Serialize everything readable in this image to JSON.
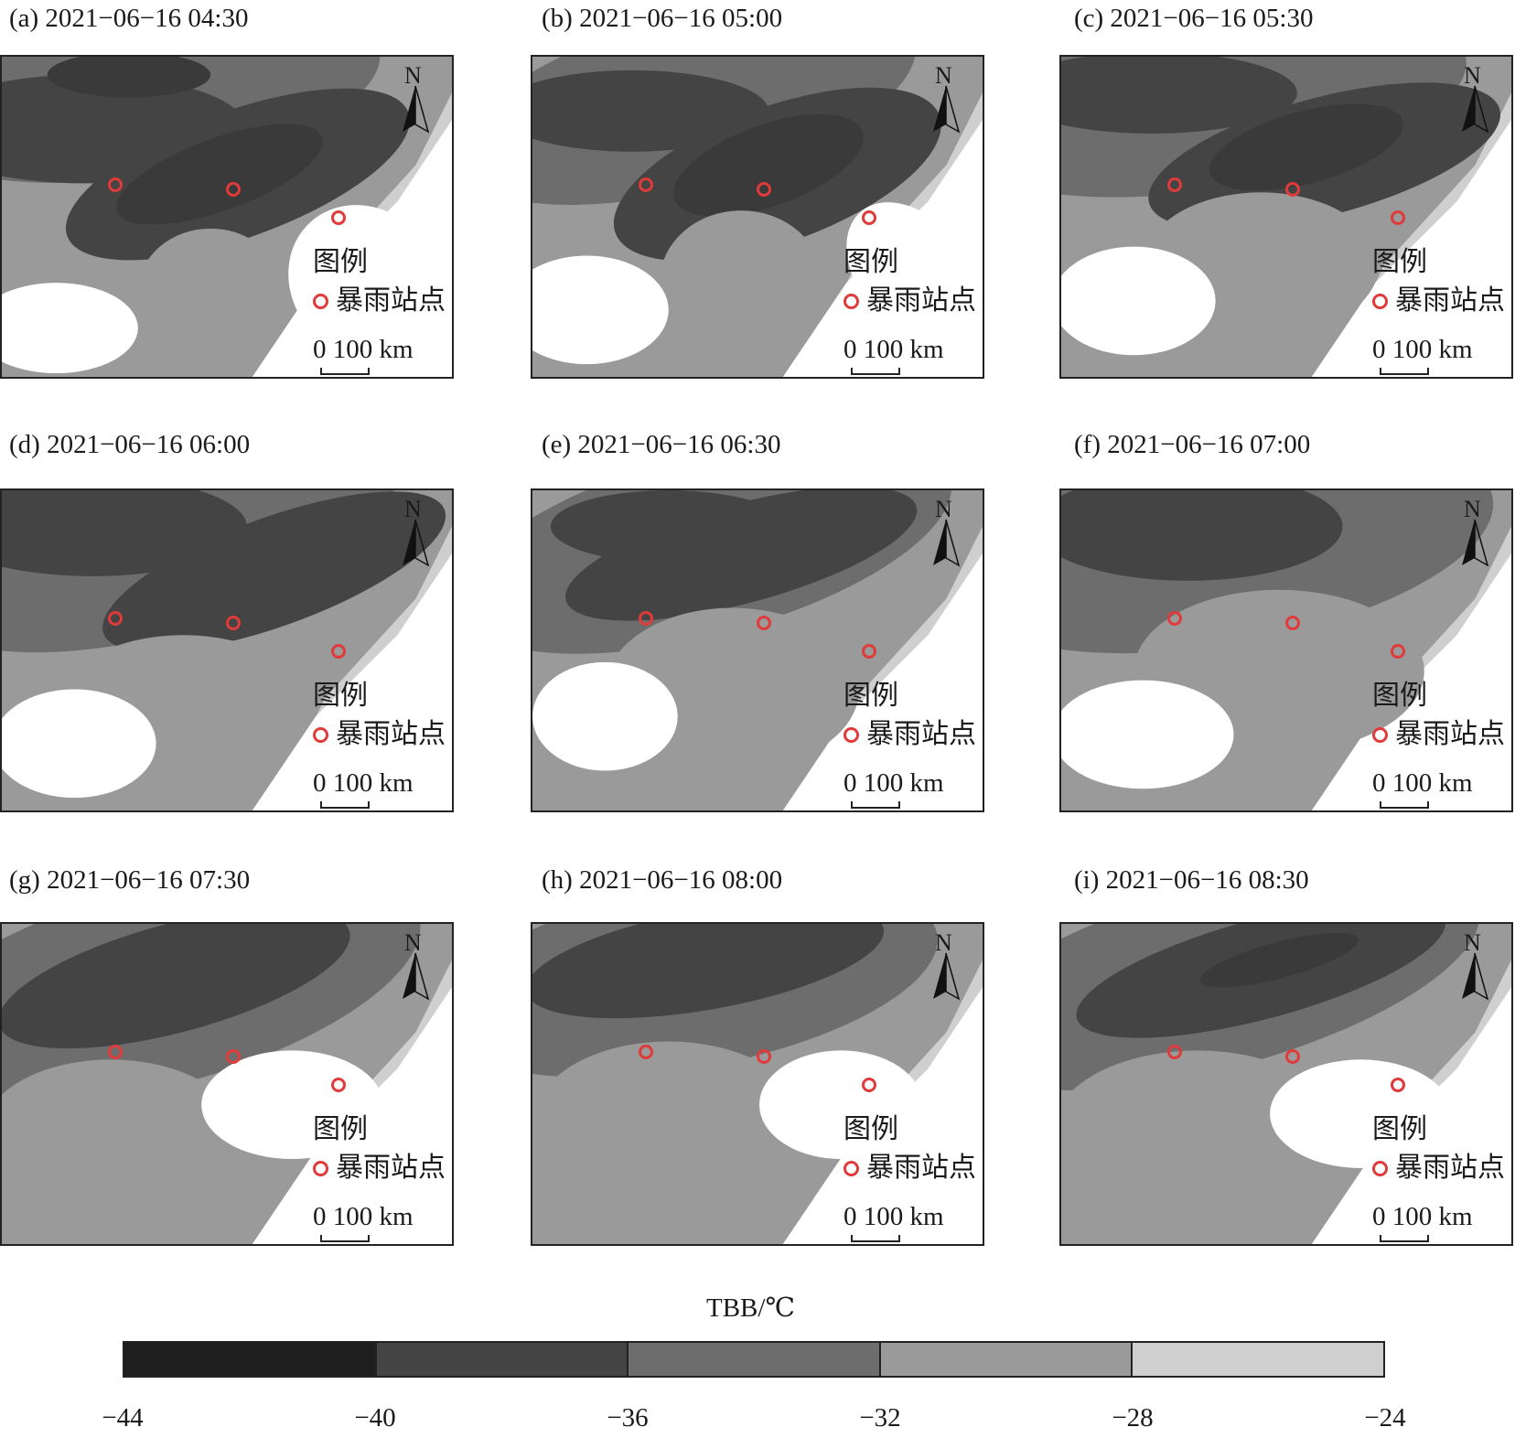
{
  "panels": [
    {
      "title": "(a) 2021−06−16 04:30"
    },
    {
      "title": "(b) 2021−06−16 05:00"
    },
    {
      "title": "(c) 2021−06−16 05:30"
    },
    {
      "title": "(d) 2021−06−16 06:00"
    },
    {
      "title": "(e) 2021−06−16 06:30"
    },
    {
      "title": "(f) 2021−06−16 07:00"
    },
    {
      "title": "(g) 2021−06−16 07:30"
    },
    {
      "title": "(h) 2021−06−16 08:00"
    },
    {
      "title": "(i) 2021−06−16 08:30"
    }
  ],
  "map": {
    "north_label": "N",
    "legend_title": "图例",
    "legend_item": "暴雨站点",
    "scale_label": "0 100 km",
    "station_color": "#e03a3a",
    "north_arrow_icon": "north-arrow-icon"
  },
  "colorbar": {
    "title": "TBB/℃",
    "ticks": [
      "−44",
      "−40",
      "−36",
      "−32",
      "−28",
      "−24"
    ],
    "colors": [
      "#1e1e1e",
      "#444444",
      "#6d6d6d",
      "#9a9a9a",
      "#cfcfcf"
    ]
  }
}
